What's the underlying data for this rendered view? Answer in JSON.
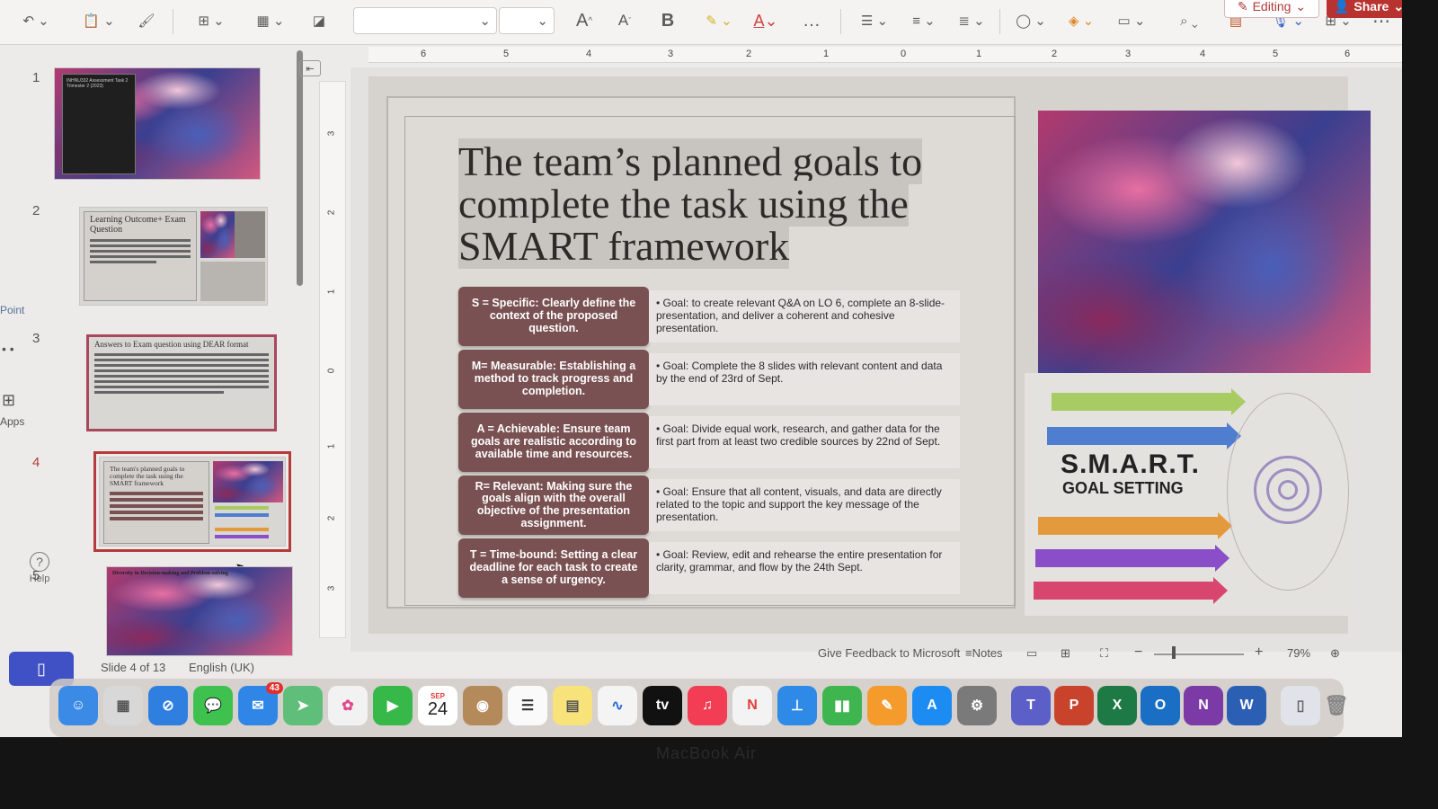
{
  "toolbar": {
    "font_size_placeholder": "",
    "editing_label": "Editing",
    "share_label": "Share",
    "bold_label": "B",
    "more_label": "…"
  },
  "rail": {
    "point_label": "Point",
    "apps_label": "Apps",
    "help_label": "Help"
  },
  "ruler": {
    "top": [
      "6",
      "5",
      "4",
      "3",
      "2",
      "1",
      "0",
      "1",
      "2",
      "3",
      "4",
      "5",
      "6"
    ],
    "side": [
      "3",
      "2",
      "1",
      "0",
      "1",
      "2",
      "3"
    ]
  },
  "thumbnails": [
    {
      "num": "1",
      "title": "INHNU332 Assessment Task 2 Trimester 2 (2023)"
    },
    {
      "num": "2",
      "title": "Learning Outcome+ Exam Question"
    },
    {
      "num": "3",
      "title": "Answers to Exam question using DEAR format"
    },
    {
      "num": "4",
      "title": "The team's planned goals to complete the task using the SMART framework"
    },
    {
      "num": "5",
      "title": "Diversity in Decision-making and Problem-solving"
    }
  ],
  "slide": {
    "title_lines": [
      "The team’s planned goals to",
      "complete the task using the",
      "SMART framework"
    ],
    "rows": [
      {
        "label": "S = Specific: Clearly define the context of the proposed question.",
        "goal": "Goal: to create relevant Q&A on LO 6, complete an 8-slide-presentation, and deliver a coherent and cohesive presentation."
      },
      {
        "label": "M= Measurable: Establishing a method to track progress and completion.",
        "goal": "Goal: Complete the 8 slides with relevant content and data by the end of 23rd of Sept."
      },
      {
        "label": "A = Achievable: Ensure team goals are realistic according to available time and resources.",
        "goal": "Goal: Divide equal work, research, and gather data for the first part from at least two credible sources by 22nd of Sept."
      },
      {
        "label": "R= Relevant: Making sure the goals align with the overall objective of the presentation assignment.",
        "goal": "Goal: Ensure that all content, visuals, and data are directly related to the topic and support the key message of the presentation."
      },
      {
        "label": "T = Time-bound: Setting a clear deadline for each task to create a sense of urgency.",
        "goal": "Goal: Review, edit and rehearse the entire presentation for clarity, grammar, and flow by the 24th Sept."
      }
    ],
    "smart_title": "S.M.A.R.T.",
    "smart_sub": "GOAL SETTING",
    "arrow_colors": [
      "#a8cc63",
      "#4f7ed0",
      "#e39a3c",
      "#8a4ec8",
      "#d8466f"
    ]
  },
  "status": {
    "slide_info": "Slide 4 of 13",
    "language": "English (UK)",
    "feedback": "Give Feedback to Microsoft",
    "notes": "Notes",
    "zoom": "79%",
    "zoom_minus": "−",
    "zoom_plus": "+"
  },
  "dock": {
    "calendar_month": "SEP",
    "calendar_day": "24",
    "mail_badge": "43"
  },
  "bezel": "MacBook Air"
}
